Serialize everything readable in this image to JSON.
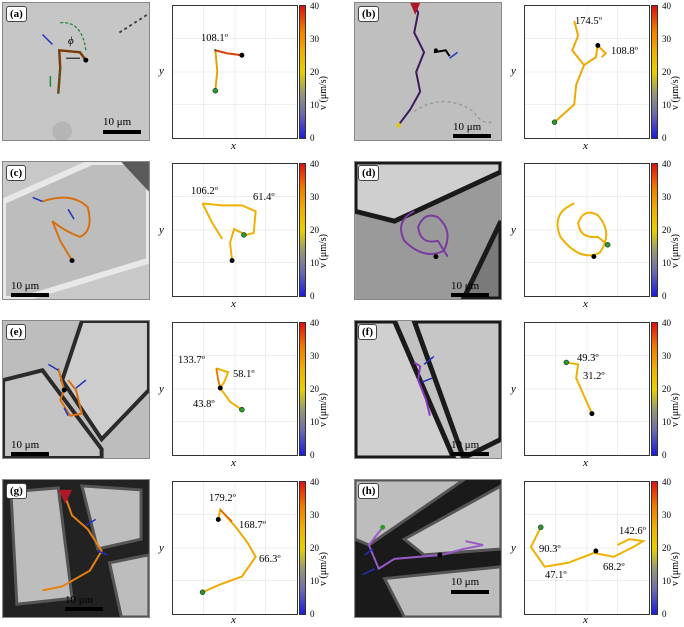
{
  "panels": [
    {
      "label": "(a)",
      "scale": "10 μm",
      "angles": [
        "108.1º"
      ],
      "phi": "ϕ"
    },
    {
      "label": "(b)",
      "scale": "10 μm",
      "angles": [
        "174.5º",
        "108.8º"
      ]
    },
    {
      "label": "(c)",
      "scale": "10 μm",
      "angles": [
        "106.2º",
        "61.4º"
      ]
    },
    {
      "label": "(d)",
      "scale": "10 μm",
      "angles": []
    },
    {
      "label": "(e)",
      "scale": "10 μm",
      "angles": [
        "133.7º",
        "58.1º",
        "43.8º"
      ]
    },
    {
      "label": "(f)",
      "scale": "10 μm",
      "angles": [
        "49.3º",
        "31.2º"
      ]
    },
    {
      "label": "(g)",
      "scale": "10 μm",
      "angles": [
        "179.2º",
        "168.7º",
        "66.3º"
      ]
    },
    {
      "label": "(h)",
      "scale": "10 μm",
      "angles": [
        "142.6º",
        "90.3º",
        "68.2º",
        "47.1º"
      ]
    }
  ],
  "axes": {
    "x": "x",
    "y": "y"
  },
  "colorbar": {
    "label": "v (μm/s)",
    "ticks": [
      "40",
      "30",
      "20",
      "10",
      "0"
    ],
    "range": [
      0,
      40
    ]
  },
  "chart_data": {
    "type": "scatter",
    "xlabel": "x",
    "ylabel": "y",
    "colorbar_label": "v (μm/s)",
    "colorbar_range": [
      0,
      40
    ],
    "turning_angles_deg": {
      "a": [
        108.1
      ],
      "b": [
        174.5,
        108.8
      ],
      "c": [
        106.2,
        61.4
      ],
      "d": [],
      "e": [
        133.7,
        58.1,
        43.8
      ],
      "f": [
        49.3,
        31.2
      ],
      "g": [
        179.2,
        168.7,
        66.3
      ],
      "h": [
        142.6,
        90.3,
        68.2,
        47.1
      ]
    }
  }
}
